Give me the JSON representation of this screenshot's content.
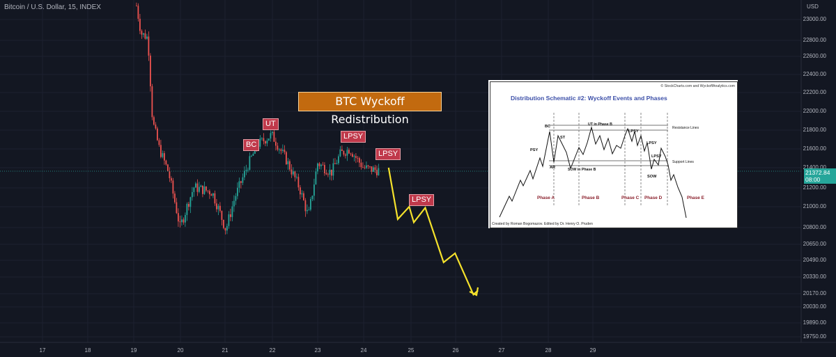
{
  "header": {
    "symbol": "Bitcoin / U.S. Dollar, 15, INDEX"
  },
  "price_axis": {
    "currency": "USD",
    "ticks": [
      "23000.00",
      "22800.00",
      "22600.00",
      "22400.00",
      "22200.00",
      "22000.00",
      "21800.00",
      "21600.00",
      "21400.00",
      "21200.00",
      "21000.00",
      "20800.00",
      "20650.00",
      "20490.00",
      "20330.00",
      "20170.00",
      "20030.00",
      "19890.00",
      "19750.00"
    ],
    "last_price": "21372.84",
    "countdown": "08:00"
  },
  "time_axis": {
    "ticks": [
      "17",
      "18",
      "19",
      "20",
      "21",
      "22",
      "23",
      "24",
      "25",
      "26",
      "27",
      "28",
      "29"
    ]
  },
  "annotations": {
    "title": "BTC Wyckoff Redistribution",
    "labels": [
      "BC",
      "UT",
      "LPSY",
      "LPSY",
      "LPSY"
    ]
  },
  "inset": {
    "copyright": "© StockCharts.com and WyckoffAnalytics.com",
    "title": "Distribution Schematic #2: Wyckoff Events and Phases",
    "events": [
      "BC",
      "PSY",
      "ST",
      "AR",
      "UT in Phase B",
      "SOW in Phase B",
      "LPSY",
      "LPSY",
      "LPSY",
      "SOW"
    ],
    "resistance": "Resistance Lines",
    "support": "Support Lines",
    "phases": [
      "Phase A",
      "Phase B",
      "Phase C",
      "Phase D",
      "Phase E"
    ],
    "credit": "Created by Roman Bogomazov. Edited by Dr. Henry O. Pruden"
  },
  "colors": {
    "background": "#131722",
    "up": "#26a69a",
    "down": "#ef5350",
    "projection": "#f5e22c",
    "label_bg": "#c0394b",
    "title_bg": "#c26a0f"
  },
  "chart_data": {
    "type": "candlestick",
    "title": "Bitcoin / U.S. Dollar, 15, INDEX",
    "x_axis": {
      "unit": "day",
      "ticks": [
        17,
        18,
        19,
        20,
        21,
        22,
        23,
        24,
        25,
        26,
        27,
        28,
        29
      ]
    },
    "y_axis": {
      "unit": "USD",
      "range": [
        19700,
        23150
      ]
    },
    "last_price": 21372.84,
    "ohlc_path": [
      {
        "day": 19.05,
        "price": 23150
      },
      {
        "day": 19.15,
        "price": 22850
      },
      {
        "day": 19.3,
        "price": 22800
      },
      {
        "day": 19.4,
        "price": 21900
      },
      {
        "day": 19.55,
        "price": 21600
      },
      {
        "day": 19.75,
        "price": 21350
      },
      {
        "day": 20.0,
        "price": 20800
      },
      {
        "day": 20.3,
        "price": 21200
      },
      {
        "day": 20.7,
        "price": 21150
      },
      {
        "day": 21.0,
        "price": 20780
      },
      {
        "day": 21.2,
        "price": 21100
      },
      {
        "day": 21.5,
        "price": 21450
      },
      {
        "day": 21.7,
        "price": 21650
      },
      {
        "day": 22.0,
        "price": 21750
      },
      {
        "day": 22.3,
        "price": 21500
      },
      {
        "day": 22.6,
        "price": 21200
      },
      {
        "day": 22.8,
        "price": 20900
      },
      {
        "day": 23.0,
        "price": 21450
      },
      {
        "day": 23.3,
        "price": 21350
      },
      {
        "day": 23.5,
        "price": 21550
      },
      {
        "day": 23.7,
        "price": 21600
      },
      {
        "day": 24.0,
        "price": 21400
      },
      {
        "day": 24.2,
        "price": 21380
      },
      {
        "day": 24.35,
        "price": 21372.84
      }
    ],
    "projection": [
      {
        "day": 24.55,
        "price": 21400
      },
      {
        "day": 24.75,
        "price": 20880
      },
      {
        "day": 25.0,
        "price": 21000
      },
      {
        "day": 25.1,
        "price": 20850
      },
      {
        "day": 25.35,
        "price": 20990
      },
      {
        "day": 25.75,
        "price": 20470
      },
      {
        "day": 26.0,
        "price": 20560
      },
      {
        "day": 26.4,
        "price": 20160
      },
      {
        "day": 26.5,
        "price": 20200
      }
    ]
  }
}
